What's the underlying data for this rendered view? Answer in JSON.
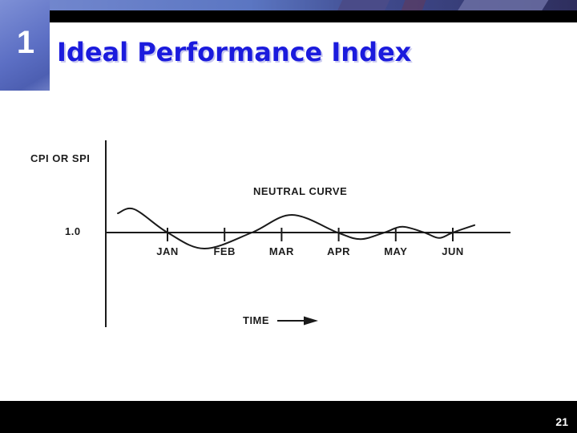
{
  "slide": {
    "number": "1",
    "title": "Ideal Performance Index",
    "page_number": "21"
  },
  "chart_data": {
    "type": "line",
    "title": "Ideal Performance Index",
    "ylabel": "CPI OR SPI",
    "xlabel": "TIME",
    "baseline": {
      "label": "1.0",
      "value": 1.0
    },
    "curve_annotation": "NEUTRAL CURVE",
    "categories": [
      "JAN",
      "FEB",
      "MAR",
      "APR",
      "MAY",
      "JUN"
    ],
    "legend_position": "none",
    "grid": false,
    "series": [
      {
        "name": "NEUTRAL CURVE",
        "points": [
          {
            "month": 0.13,
            "value": 1.12
          },
          {
            "month": 0.42,
            "value": 1.145
          },
          {
            "month": 1.0,
            "value": 1.0
          },
          {
            "month": 1.65,
            "value": 0.9
          },
          {
            "month": 2.48,
            "value": 1.0
          },
          {
            "month": 3.18,
            "value": 1.11
          },
          {
            "month": 3.98,
            "value": 1.0
          },
          {
            "month": 4.38,
            "value": 0.959
          },
          {
            "month": 4.8,
            "value": 1.0
          },
          {
            "month": 5.12,
            "value": 1.036
          },
          {
            "month": 5.5,
            "value": 1.0
          },
          {
            "month": 5.76,
            "value": 0.966
          },
          {
            "month": 6.0,
            "value": 1.0
          },
          {
            "month": 6.38,
            "value": 1.046
          }
        ]
      }
    ]
  },
  "colors": {
    "title_text": "#1b1bdd",
    "title_shadow": "#c9c9ef",
    "chart_ink": "#1a1a1a",
    "tab_blue": "#5c6fc4",
    "banner_blue": "#5b76c2",
    "banner_dark": "#2e2e5d",
    "bar_black": "#000000",
    "page_number_text": "#ffffff"
  }
}
